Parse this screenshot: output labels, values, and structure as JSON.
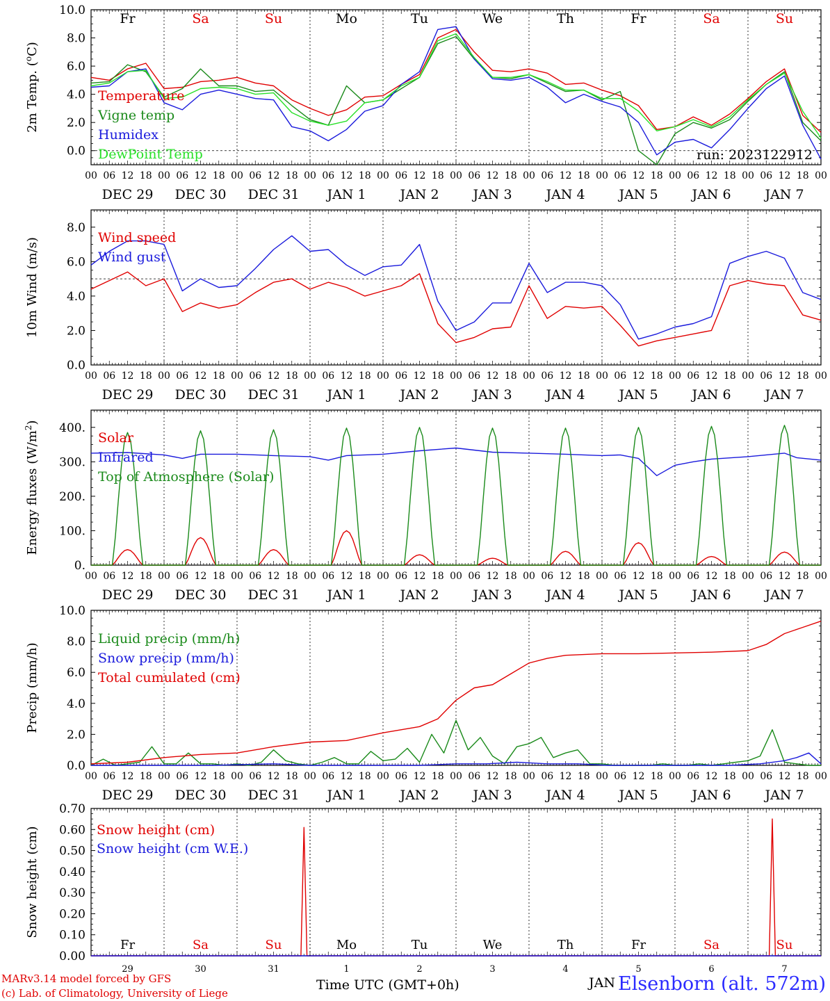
{
  "footer": {
    "line1": "MARv3.14 model forced by GFS",
    "line2": "(c) Lab. of Climatology, University of Liege",
    "xaxis_label": "Time UTC (GMT+0h)",
    "station": "Elsenborn (alt. 572m)",
    "last_month": "JAN"
  },
  "colors": {
    "red": "#e00000",
    "green": "#1a8a1a",
    "blue": "#1a1adc",
    "lightgreen": "#28e028",
    "grid": "#000000"
  },
  "days": [
    "Fr",
    "Sa",
    "Su",
    "Mo",
    "Tu",
    "We",
    "Th",
    "Fr",
    "Sa",
    "Su"
  ],
  "day_colors": [
    "#000000",
    "#e00000",
    "#e00000",
    "#000000",
    "#000000",
    "#000000",
    "#000000",
    "#000000",
    "#e00000",
    "#e00000"
  ],
  "dates": [
    "DEC 29",
    "DEC 30",
    "DEC 31",
    "JAN  1",
    "JAN  2",
    "JAN  3",
    "JAN  4",
    "JAN  5",
    "JAN  6",
    "JAN  7"
  ],
  "date_numbers": [
    "29",
    "30",
    "31",
    "1",
    "2",
    "3",
    "4",
    "5",
    "6",
    "7"
  ],
  "hour_ticks": [
    "00",
    "06",
    "12",
    "18"
  ],
  "chart_data": [
    {
      "type": "line",
      "ylabel": "2m Temp. (oC)",
      "ylim": [
        -1,
        10
      ],
      "yticks": [
        "0.0",
        "2.0",
        "4.0",
        "6.0",
        "8.0",
        "10.0"
      ],
      "ref_line": 0,
      "run": "run: 2023122912",
      "x_unit": "hours from DEC 29 00 UTC",
      "series": [
        {
          "name": "Temperature",
          "color": "#e00000",
          "x": [
            0,
            6,
            12,
            18,
            24,
            30,
            36,
            42,
            48,
            54,
            60,
            66,
            72,
            78,
            84,
            90,
            96,
            102,
            108,
            114,
            120,
            126,
            132,
            138,
            144,
            150,
            156,
            162,
            168,
            174,
            180,
            186,
            192,
            198,
            204,
            210,
            216,
            222,
            228,
            234,
            240
          ],
          "y": [
            5.2,
            5.0,
            5.8,
            6.2,
            4.4,
            4.5,
            4.9,
            5.0,
            5.2,
            4.8,
            4.6,
            3.6,
            3.0,
            2.5,
            2.9,
            3.8,
            3.9,
            4.7,
            5.4,
            8.0,
            8.6,
            7.0,
            5.7,
            5.6,
            5.8,
            5.5,
            4.7,
            4.8,
            4.3,
            3.9,
            3.2,
            1.5,
            1.7,
            2.4,
            1.8,
            2.6,
            3.7,
            4.9,
            5.8,
            2.5,
            1.3
          ]
        },
        {
          "name": "Vigne temp",
          "color": "#1a8a1a",
          "x": [
            0,
            6,
            12,
            18,
            24,
            30,
            36,
            42,
            48,
            54,
            60,
            66,
            72,
            78,
            84,
            90,
            96,
            102,
            108,
            114,
            120,
            126,
            132,
            138,
            144,
            150,
            156,
            162,
            168,
            174,
            180,
            186,
            192,
            198,
            204,
            210,
            216,
            222,
            228,
            234,
            240
          ],
          "y": [
            4.8,
            4.9,
            6.1,
            5.6,
            3.8,
            4.4,
            5.8,
            4.6,
            4.6,
            4.2,
            4.3,
            3.2,
            2.2,
            1.8,
            4.6,
            3.4,
            3.6,
            4.4,
            5.2,
            7.6,
            8.1,
            6.5,
            5.2,
            5.1,
            5.4,
            4.8,
            4.2,
            4.3,
            3.6,
            4.2,
            0.0,
            -1.0,
            1.2,
            2.0,
            1.6,
            2.2,
            3.5,
            4.7,
            5.6,
            2.0,
            0.7
          ]
        },
        {
          "name": "Humidex",
          "color": "#1a1adc",
          "x": [
            0,
            6,
            12,
            18,
            24,
            30,
            36,
            42,
            48,
            54,
            60,
            66,
            72,
            78,
            84,
            90,
            96,
            102,
            108,
            114,
            120,
            126,
            132,
            138,
            144,
            150,
            156,
            162,
            168,
            174,
            180,
            186,
            192,
            198,
            204,
            210,
            216,
            222,
            228,
            234,
            240
          ],
          "y": [
            4.5,
            4.6,
            5.6,
            5.8,
            3.4,
            2.9,
            4.0,
            4.3,
            4.0,
            3.7,
            3.6,
            1.7,
            1.4,
            0.7,
            1.5,
            2.8,
            3.2,
            4.7,
            5.6,
            8.6,
            8.8,
            6.5,
            5.1,
            5.0,
            5.2,
            4.5,
            3.4,
            4.0,
            3.5,
            3.1,
            2.0,
            -0.3,
            0.6,
            0.8,
            0.2,
            1.5,
            3.0,
            4.4,
            5.3,
            1.8,
            -0.6
          ]
        },
        {
          "name": "DewPoint Temp",
          "color": "#28e028",
          "x": [
            0,
            6,
            12,
            18,
            24,
            30,
            36,
            42,
            48,
            54,
            60,
            66,
            72,
            78,
            84,
            90,
            96,
            102,
            108,
            114,
            120,
            126,
            132,
            138,
            144,
            150,
            156,
            162,
            168,
            174,
            180,
            186,
            192,
            198,
            204,
            210,
            216,
            222,
            228,
            234,
            240
          ],
          "y": [
            4.6,
            4.8,
            5.6,
            5.7,
            3.7,
            3.8,
            4.4,
            4.5,
            4.4,
            4.0,
            4.1,
            2.7,
            2.1,
            1.8,
            2.1,
            3.4,
            3.6,
            4.6,
            5.2,
            7.8,
            8.3,
            6.6,
            5.2,
            5.2,
            5.4,
            4.9,
            4.3,
            4.3,
            3.7,
            3.7,
            2.8,
            1.4,
            1.7,
            2.2,
            1.7,
            2.4,
            3.6,
            4.7,
            5.5,
            2.8,
            0.9
          ]
        }
      ]
    },
    {
      "type": "line",
      "ylabel": "10m Wind (m/s)",
      "ylim": [
        0,
        9
      ],
      "yticks": [
        "0.0",
        "2.0",
        "4.0",
        "6.0",
        "8.0"
      ],
      "ref_line": 5,
      "x_unit": "hours from DEC 29 00 UTC",
      "series": [
        {
          "name": "Wind speed",
          "color": "#e00000",
          "x": [
            0,
            6,
            12,
            18,
            24,
            30,
            36,
            42,
            48,
            54,
            60,
            66,
            72,
            78,
            84,
            90,
            96,
            102,
            108,
            114,
            120,
            126,
            132,
            138,
            144,
            150,
            156,
            162,
            168,
            174,
            180,
            186,
            192,
            198,
            204,
            210,
            216,
            222,
            228,
            234,
            240
          ],
          "y": [
            4.4,
            4.9,
            5.4,
            4.6,
            5.0,
            3.1,
            3.6,
            3.3,
            3.5,
            4.2,
            4.8,
            5.0,
            4.4,
            4.8,
            4.5,
            4.0,
            4.3,
            4.6,
            5.3,
            2.4,
            1.3,
            1.6,
            2.1,
            2.2,
            4.6,
            2.7,
            3.4,
            3.3,
            3.4,
            2.3,
            1.1,
            1.4,
            1.6,
            1.8,
            2.0,
            4.6,
            4.9,
            4.7,
            4.6,
            2.9,
            2.6
          ]
        },
        {
          "name": "Wind gust",
          "color": "#1a1adc",
          "x": [
            0,
            6,
            12,
            18,
            24,
            30,
            36,
            42,
            48,
            54,
            60,
            66,
            72,
            78,
            84,
            90,
            96,
            102,
            108,
            114,
            120,
            126,
            132,
            138,
            144,
            150,
            156,
            162,
            168,
            174,
            180,
            186,
            192,
            198,
            204,
            210,
            216,
            222,
            228,
            234,
            240
          ],
          "y": [
            5.8,
            6.6,
            7.2,
            7.2,
            7.0,
            4.3,
            5.0,
            4.5,
            4.6,
            5.6,
            6.7,
            7.5,
            6.6,
            6.7,
            5.8,
            5.2,
            5.7,
            5.8,
            7.0,
            3.7,
            2.0,
            2.5,
            3.6,
            3.6,
            5.9,
            4.2,
            4.8,
            4.8,
            4.6,
            3.5,
            1.5,
            1.8,
            2.2,
            2.4,
            2.8,
            5.9,
            6.3,
            6.6,
            6.2,
            4.2,
            3.8
          ]
        }
      ]
    },
    {
      "type": "line",
      "ylabel": "Energy fluxes (W/m2)",
      "ylim": [
        0,
        450
      ],
      "yticks": [
        "0.",
        "100.",
        "200.",
        "300.",
        "400."
      ],
      "x_unit": "hours from DEC 29 00 UTC",
      "series": [
        {
          "name": "Solar",
          "color": "#e00000",
          "peaks": [
            45,
            80,
            45,
            100,
            30,
            20,
            40,
            65,
            25,
            38
          ]
        },
        {
          "name": "Infrared",
          "color": "#1a1adc",
          "x": [
            0,
            12,
            24,
            30,
            36,
            48,
            60,
            72,
            78,
            84,
            90,
            96,
            108,
            120,
            132,
            144,
            156,
            168,
            174,
            180,
            186,
            192,
            198,
            204,
            216,
            228,
            232,
            240
          ],
          "y": [
            325,
            327,
            320,
            310,
            322,
            322,
            318,
            315,
            305,
            318,
            320,
            322,
            332,
            340,
            328,
            325,
            322,
            318,
            320,
            310,
            260,
            290,
            300,
            308,
            315,
            325,
            312,
            305
          ]
        },
        {
          "name": "Top of Atmosphere (Solar)",
          "color": "#1a8a1a",
          "peaks": [
            385,
            390,
            393,
            398,
            400,
            398,
            398,
            400,
            403,
            406
          ]
        }
      ]
    },
    {
      "type": "line",
      "ylabel": "Precip (mm/h)",
      "ylim": [
        0,
        10
      ],
      "yticks": [
        "0.0",
        "2.0",
        "4.0",
        "6.0",
        "8.0",
        "10.0"
      ],
      "x_unit": "hours from DEC 29 00 UTC",
      "series": [
        {
          "name": "Liquid precip (mm/h)",
          "color": "#1a8a1a",
          "x": [
            0,
            4,
            8,
            12,
            16,
            20,
            24,
            28,
            32,
            36,
            40,
            44,
            48,
            52,
            56,
            60,
            64,
            68,
            72,
            76,
            80,
            84,
            88,
            92,
            96,
            100,
            104,
            108,
            112,
            116,
            120,
            124,
            128,
            132,
            136,
            140,
            144,
            148,
            152,
            156,
            160,
            164,
            168,
            172,
            176,
            180,
            184,
            188,
            192,
            196,
            200,
            204,
            208,
            212,
            216,
            220,
            224,
            228,
            232,
            236,
            240
          ],
          "y": [
            0.0,
            0.4,
            0.0,
            0.1,
            0.2,
            1.2,
            0.1,
            0.1,
            0.8,
            0.1,
            0.1,
            0.0,
            0.1,
            0.0,
            0.2,
            1.0,
            0.3,
            0.1,
            0.0,
            0.2,
            0.5,
            0.1,
            0.1,
            0.9,
            0.3,
            0.4,
            1.1,
            0.2,
            2.0,
            0.8,
            2.9,
            1.0,
            1.8,
            0.6,
            0.1,
            1.2,
            1.4,
            1.8,
            0.5,
            0.8,
            1.0,
            0.1,
            0.1,
            0.0,
            0.0,
            0.0,
            0.0,
            0.1,
            0.0,
            0.0,
            0.1,
            0.0,
            0.1,
            0.2,
            0.3,
            0.6,
            2.3,
            0.2,
            0.1,
            0.0,
            0.0
          ]
        },
        {
          "name": "Snow precip (mm/h)",
          "color": "#1a1adc",
          "x": [
            0,
            20,
            40,
            60,
            72,
            84,
            96,
            108,
            120,
            130,
            140,
            150,
            160,
            170,
            180,
            190,
            200,
            210,
            220,
            228,
            232,
            236,
            240
          ],
          "y": [
            0.0,
            0.0,
            0.0,
            0.1,
            0.0,
            0.0,
            0.0,
            0.0,
            0.1,
            0.1,
            0.2,
            0.1,
            0.1,
            0.0,
            0.0,
            0.0,
            0.0,
            0.0,
            0.1,
            0.3,
            0.5,
            0.8,
            0.1
          ]
        },
        {
          "name": "Total cumulated (cm)",
          "color": "#e00000",
          "x": [
            0,
            12,
            24,
            36,
            48,
            60,
            72,
            84,
            96,
            108,
            114,
            120,
            126,
            132,
            138,
            144,
            150,
            156,
            168,
            180,
            192,
            204,
            216,
            222,
            228,
            234,
            240
          ],
          "y": [
            0.1,
            0.2,
            0.5,
            0.7,
            0.8,
            1.2,
            1.5,
            1.6,
            2.1,
            2.5,
            3.0,
            4.2,
            5.0,
            5.2,
            5.9,
            6.6,
            6.9,
            7.1,
            7.2,
            7.2,
            7.25,
            7.3,
            7.4,
            7.8,
            8.5,
            8.9,
            9.3
          ]
        }
      ]
    },
    {
      "type": "line",
      "ylabel": "Snow height (cm)",
      "ylim": [
        0,
        0.7
      ],
      "yticks": [
        "0.00",
        "0.10",
        "0.20",
        "0.30",
        "0.40",
        "0.50",
        "0.60",
        "0.70"
      ],
      "x_unit": "hours from DEC 29 00 UTC",
      "series": [
        {
          "name": "Snow height (cm)",
          "color": "#e00000",
          "x": [
            0,
            69,
            70,
            71,
            223,
            224,
            225,
            240
          ],
          "y": [
            0,
            0,
            0.61,
            0,
            0,
            0.65,
            0,
            0
          ]
        },
        {
          "name": "Snow height (cm W.E.)",
          "color": "#1a1adc",
          "x": [
            0,
            240
          ],
          "y": [
            0,
            0
          ]
        }
      ]
    }
  ]
}
